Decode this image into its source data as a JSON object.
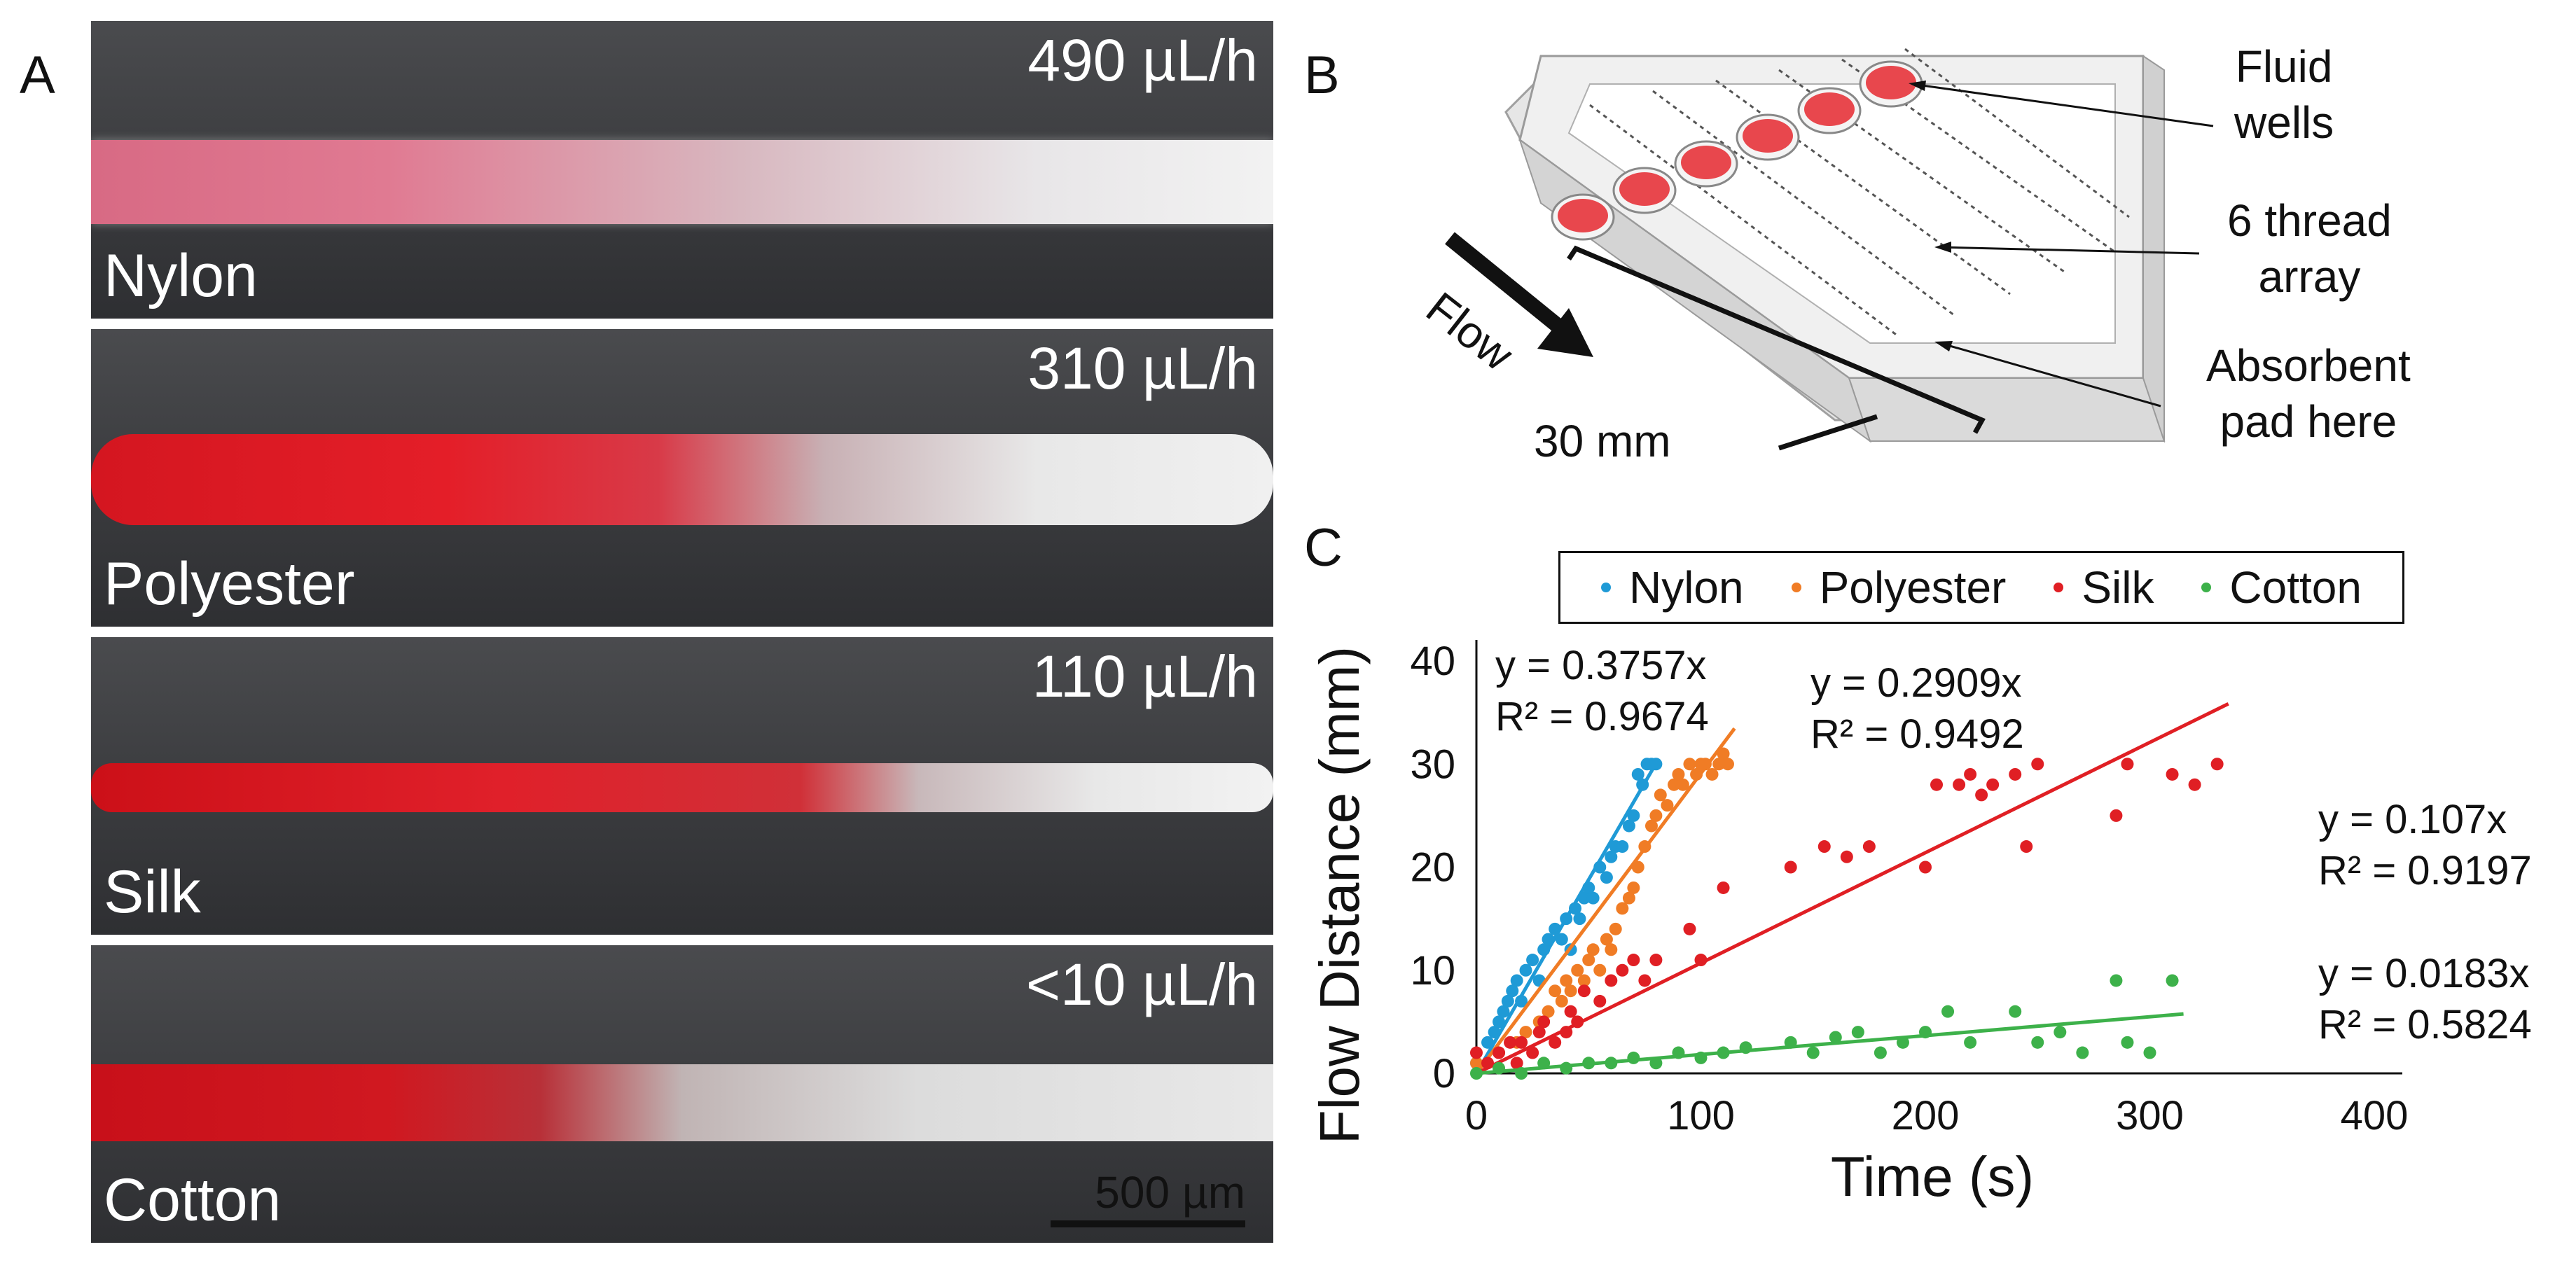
{
  "panel_letters": {
    "a": "A",
    "b": "B",
    "c": "C"
  },
  "panel_a": {
    "threads": [
      {
        "material": "Nylon",
        "flow_rate": "490 µL/h"
      },
      {
        "material": "Polyester",
        "flow_rate": "310 µL/h"
      },
      {
        "material": "Silk",
        "flow_rate": "110 µL/h"
      },
      {
        "material": "Cotton",
        "flow_rate": "<10 µL/h"
      }
    ],
    "scale_bar": "500 µm"
  },
  "panel_b": {
    "flow_label": "Flow",
    "length_label": "30 mm",
    "callouts": {
      "fluid_wells": [
        "Fluid",
        "wells"
      ],
      "thread_array": [
        "6 thread",
        "array"
      ],
      "absorbent_pad": [
        "Absorbent",
        "pad here"
      ]
    },
    "well_count": 6,
    "colors": {
      "well": "#e8474d",
      "tray": "#ececec"
    }
  },
  "chart_data": {
    "type": "scatter",
    "title": "",
    "xlabel": "Time (s)",
    "ylabel": "Flow Distance (mm)",
    "xlim": [
      0,
      400
    ],
    "ylim": [
      0,
      40
    ],
    "xticks": [
      0,
      100,
      200,
      300,
      400
    ],
    "yticks": [
      0,
      10,
      20,
      30,
      40
    ],
    "legend_position": "top",
    "series": [
      {
        "name": "Nylon",
        "color": "#1f9ad6",
        "slope": 0.3757,
        "fit_x_max": 80,
        "equation": "y = 0.3757x",
        "r2": "R² = 0.9674",
        "points": [
          [
            0,
            1
          ],
          [
            5,
            3
          ],
          [
            8,
            4
          ],
          [
            10,
            5
          ],
          [
            12,
            6
          ],
          [
            14,
            7
          ],
          [
            16,
            8
          ],
          [
            18,
            9
          ],
          [
            20,
            7
          ],
          [
            22,
            10
          ],
          [
            25,
            11
          ],
          [
            28,
            9
          ],
          [
            30,
            12
          ],
          [
            32,
            13
          ],
          [
            35,
            14
          ],
          [
            38,
            13
          ],
          [
            40,
            15
          ],
          [
            42,
            12
          ],
          [
            44,
            16
          ],
          [
            46,
            15
          ],
          [
            48,
            17
          ],
          [
            50,
            18
          ],
          [
            52,
            17
          ],
          [
            55,
            20
          ],
          [
            58,
            19
          ],
          [
            60,
            21
          ],
          [
            62,
            22
          ],
          [
            65,
            22
          ],
          [
            68,
            24
          ],
          [
            70,
            25
          ],
          [
            72,
            29
          ],
          [
            74,
            28
          ],
          [
            76,
            30
          ],
          [
            78,
            30
          ],
          [
            80,
            30
          ]
        ]
      },
      {
        "name": "Polyester",
        "color": "#f07c25",
        "slope": 0.2909,
        "fit_x_max": 115,
        "equation": "y = 0.2909x",
        "r2": "R² = 0.9492",
        "points": [
          [
            0,
            1
          ],
          [
            10,
            2
          ],
          [
            18,
            3
          ],
          [
            22,
            4
          ],
          [
            28,
            5
          ],
          [
            32,
            6
          ],
          [
            35,
            8
          ],
          [
            38,
            7
          ],
          [
            40,
            9
          ],
          [
            42,
            8
          ],
          [
            45,
            10
          ],
          [
            48,
            9
          ],
          [
            50,
            11
          ],
          [
            52,
            12
          ],
          [
            55,
            10
          ],
          [
            58,
            13
          ],
          [
            60,
            12
          ],
          [
            62,
            14
          ],
          [
            65,
            16
          ],
          [
            68,
            17
          ],
          [
            70,
            18
          ],
          [
            72,
            20
          ],
          [
            75,
            22
          ],
          [
            78,
            24
          ],
          [
            80,
            25
          ],
          [
            82,
            27
          ],
          [
            85,
            26
          ],
          [
            88,
            28
          ],
          [
            90,
            29
          ],
          [
            92,
            28
          ],
          [
            95,
            30
          ],
          [
            98,
            29
          ],
          [
            100,
            30
          ],
          [
            102,
            30
          ],
          [
            105,
            29
          ],
          [
            108,
            30
          ],
          [
            110,
            31
          ],
          [
            112,
            30
          ]
        ]
      },
      {
        "name": "Silk",
        "color": "#e01f24",
        "slope": 0.107,
        "fit_x_max": 335,
        "equation": "y = 0.107x",
        "r2": "R² = 0.9197",
        "points": [
          [
            0,
            2
          ],
          [
            5,
            1
          ],
          [
            10,
            2
          ],
          [
            15,
            3
          ],
          [
            18,
            1
          ],
          [
            20,
            3
          ],
          [
            25,
            2
          ],
          [
            28,
            4
          ],
          [
            30,
            5
          ],
          [
            35,
            3
          ],
          [
            40,
            4
          ],
          [
            42,
            6
          ],
          [
            45,
            5
          ],
          [
            48,
            8
          ],
          [
            55,
            7
          ],
          [
            60,
            9
          ],
          [
            65,
            10
          ],
          [
            70,
            11
          ],
          [
            75,
            9
          ],
          [
            80,
            11
          ],
          [
            95,
            14
          ],
          [
            100,
            11
          ],
          [
            110,
            18
          ],
          [
            140,
            20
          ],
          [
            155,
            22
          ],
          [
            165,
            21
          ],
          [
            175,
            22
          ],
          [
            200,
            20
          ],
          [
            205,
            28
          ],
          [
            215,
            28
          ],
          [
            220,
            29
          ],
          [
            225,
            27
          ],
          [
            230,
            28
          ],
          [
            240,
            29
          ],
          [
            245,
            22
          ],
          [
            250,
            30
          ],
          [
            285,
            25
          ],
          [
            290,
            30
          ],
          [
            310,
            29
          ],
          [
            320,
            28
          ],
          [
            330,
            30
          ]
        ]
      },
      {
        "name": "Cotton",
        "color": "#3db14a",
        "slope": 0.0183,
        "fit_x_max": 315,
        "equation": "y = 0.0183x",
        "r2": "R² = 0.5824",
        "points": [
          [
            0,
            0
          ],
          [
            10,
            0.5
          ],
          [
            20,
            0
          ],
          [
            30,
            1
          ],
          [
            40,
            0.5
          ],
          [
            50,
            1
          ],
          [
            60,
            1
          ],
          [
            70,
            1.5
          ],
          [
            80,
            1
          ],
          [
            90,
            2
          ],
          [
            100,
            1.5
          ],
          [
            110,
            2
          ],
          [
            120,
            2.5
          ],
          [
            140,
            3
          ],
          [
            150,
            2
          ],
          [
            160,
            3.5
          ],
          [
            170,
            4
          ],
          [
            180,
            2
          ],
          [
            190,
            3
          ],
          [
            200,
            4
          ],
          [
            210,
            6
          ],
          [
            220,
            3
          ],
          [
            240,
            6
          ],
          [
            250,
            3
          ],
          [
            260,
            4
          ],
          [
            270,
            2
          ],
          [
            285,
            9
          ],
          [
            290,
            3
          ],
          [
            300,
            2
          ],
          [
            310,
            9
          ]
        ]
      }
    ]
  }
}
